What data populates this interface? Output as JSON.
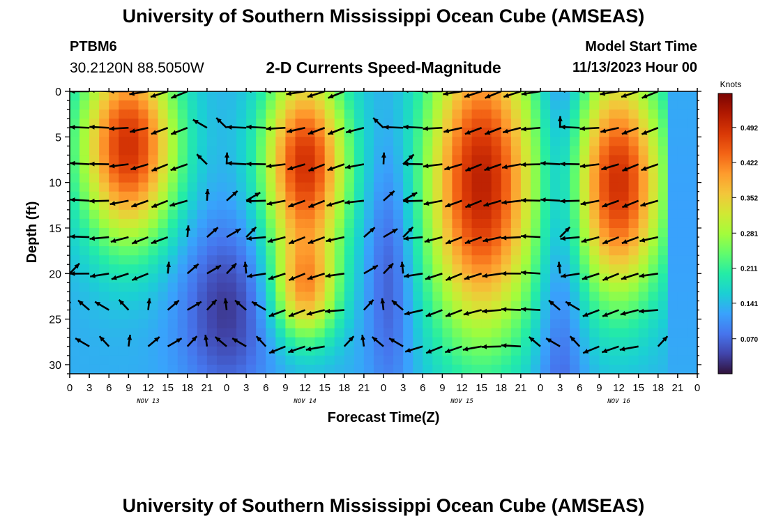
{
  "header": {
    "title": "University of Southern Mississippi Ocean Cube (AMSEAS)",
    "station": "PTBM6",
    "latlon": "30.2120N  88.5050W",
    "model_label": "Model Start Time",
    "model_time": "11/13/2023 Hour 00"
  },
  "footer": {
    "title": "University of Southern Mississippi Ocean Cube (AMSEAS)"
  },
  "chart_data": {
    "type": "heatmap",
    "title": "2-D Currents Speed-Magnitude",
    "xlabel": "Forecast Time(Z)",
    "ylabel": "Depth (ft)",
    "x_ticks": [
      "0",
      "3",
      "6",
      "9",
      "12",
      "15",
      "18",
      "21",
      "0",
      "3",
      "6",
      "9",
      "12",
      "15",
      "18",
      "21",
      "0",
      "3",
      "6",
      "9",
      "12",
      "15",
      "18",
      "21",
      "0",
      "3",
      "6",
      "9",
      "12",
      "15",
      "18",
      "21",
      "0"
    ],
    "x_range_hours": [
      0,
      96
    ],
    "day_labels": [
      {
        "label": "NOV 13",
        "hour": 12
      },
      {
        "label": "NOV 14",
        "hour": 36
      },
      {
        "label": "NOV 15",
        "hour": 60
      },
      {
        "label": "NOV 16",
        "hour": 84
      }
    ],
    "y_ticks": [
      0,
      5,
      10,
      15,
      20,
      25,
      30
    ],
    "y_range_ft": [
      0,
      31
    ],
    "colorbar": {
      "label": "Knots",
      "ticks": [
        0.07,
        0.141,
        0.211,
        0.281,
        0.352,
        0.422,
        0.492
      ],
      "tick_labels": [
        "0.070",
        "0.141",
        "0.211",
        "0.281",
        "0.352",
        "0.422",
        "0.492"
      ],
      "range": [
        0.0,
        0.56
      ],
      "colors": [
        "#30123b",
        "#4145ab",
        "#4675ed",
        "#39a2fc",
        "#1bcfd4",
        "#24eca6",
        "#61fc6c",
        "#a4fc3b",
        "#d1e834",
        "#f3c63a",
        "#fe9b2d",
        "#f36315",
        "#d93806",
        "#b11901",
        "#7a0402"
      ]
    },
    "arrow_depths_ft": [
      0,
      4,
      8,
      12,
      16,
      20,
      24,
      28
    ],
    "arrow_hours": [
      0,
      3,
      6,
      9,
      12,
      15,
      18,
      21,
      24,
      27,
      30,
      33,
      36,
      39,
      42,
      45,
      48,
      51,
      54,
      57,
      60,
      63,
      66,
      69,
      72,
      75,
      78,
      81,
      84,
      87,
      90
    ],
    "arrow_note": "direction of current; arrows at each depth/time node"
  }
}
